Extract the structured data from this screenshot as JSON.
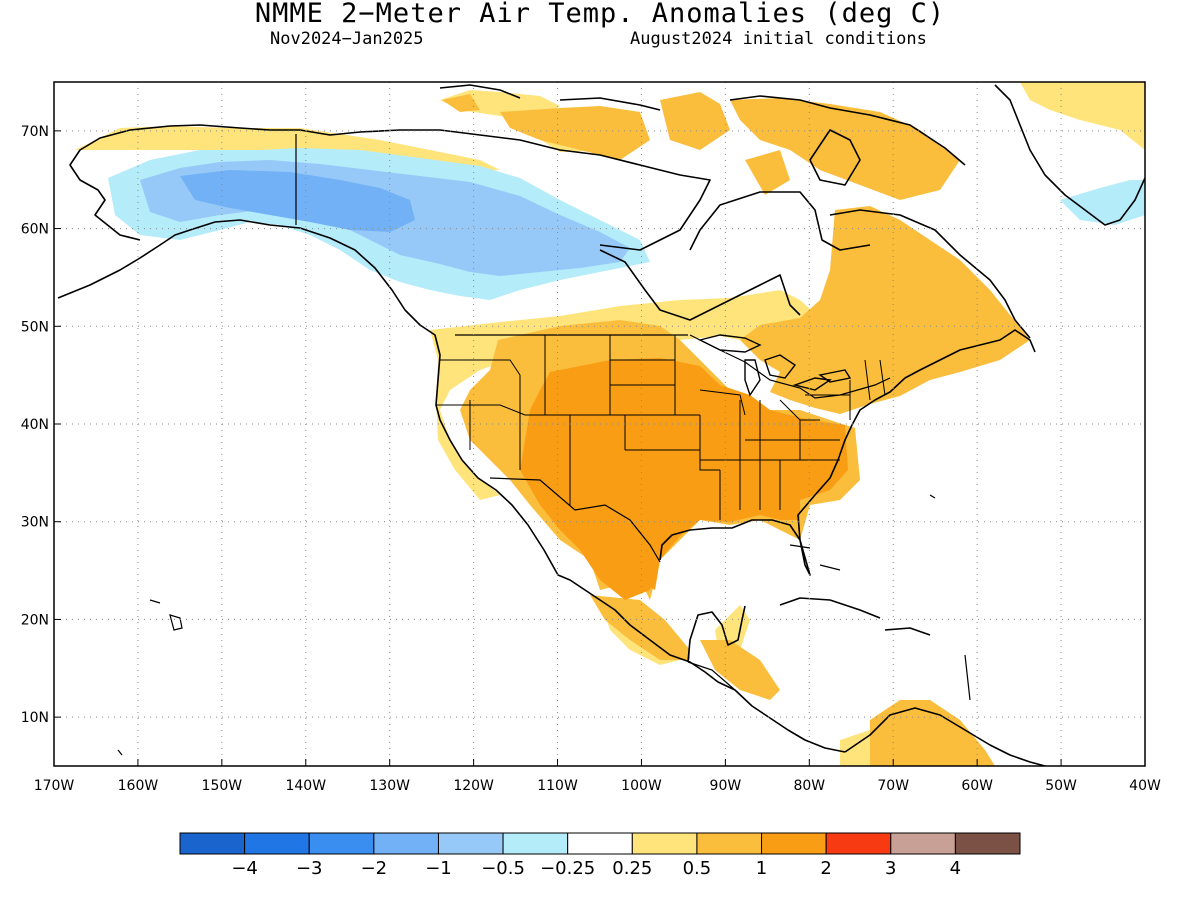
{
  "title": "NMME 2−Meter Air Temp. Anomalies (deg C)",
  "subtitle_left": "Nov2024−Jan2025",
  "subtitle_right": "August2024 initial conditions",
  "map": {
    "lon_range": [
      -170,
      -40
    ],
    "lat_range": [
      5,
      75
    ],
    "lon_ticks": [
      "170W",
      "160W",
      "150W",
      "140W",
      "130W",
      "120W",
      "110W",
      "100W",
      "90W",
      "80W",
      "70W",
      "60W",
      "50W",
      "40W"
    ],
    "lat_ticks": [
      "70N",
      "60N",
      "50N",
      "40N",
      "30N",
      "20N",
      "10N"
    ],
    "gridlines": "dotted",
    "land_color": "#ffffff",
    "ocean_color": "#ffffff",
    "outline_color": "#000000"
  },
  "colorbar": {
    "colors": [
      "#1965cd",
      "#2176e6",
      "#3a8ef0",
      "#72b1f5",
      "#97c9f8",
      "#b4ecfa",
      "#ffffff",
      "#ffe47c",
      "#fbbe3c",
      "#f99e14",
      "#f83a12",
      "#c8a096",
      "#7a5144"
    ],
    "labels": [
      "−4",
      "−3",
      "−2",
      "−1",
      "−0.5",
      "−0.25",
      "0.25",
      "0.5",
      "1",
      "2",
      "3",
      "4"
    ]
  }
}
